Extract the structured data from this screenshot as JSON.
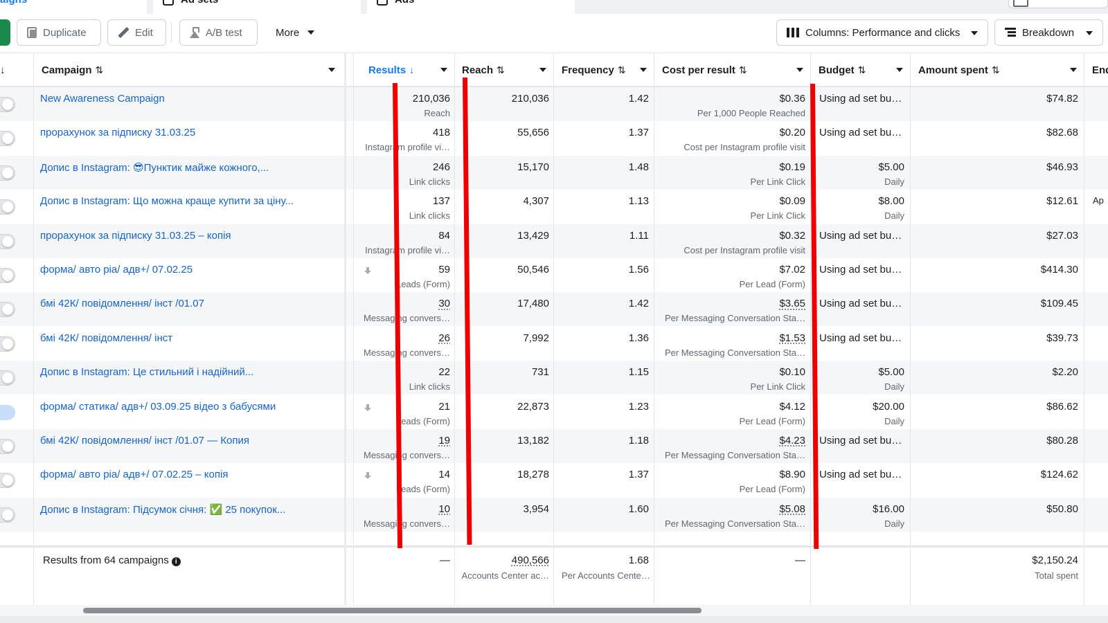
{
  "tabs": {
    "campaigns": "aigns",
    "adsets": "Ad sets",
    "ads": "Ads"
  },
  "toolbar": {
    "duplicate": "Duplicate",
    "edit": "Edit",
    "ab_test": "A/B test",
    "more": "More",
    "columns": "Columns: Performance and clicks",
    "breakdown": "Breakdown"
  },
  "columns": {
    "campaign": "Campaign",
    "results": "Results",
    "reach": "Reach",
    "frequency": "Frequency",
    "cost_per_result": "Cost per result",
    "budget": "Budget",
    "amount_spent": "Amount spent",
    "ends": "End"
  },
  "rows": [
    {
      "name": "New Awareness Campaign",
      "results": "210,036",
      "results_sub": "Reach",
      "reach": "210,036",
      "frequency": "1.42",
      "cost": "$0.36",
      "cost_sub": "Per 1,000 People Reached",
      "budget": "Using ad set bu…",
      "budget_sub": "",
      "spent": "$74.82",
      "ends": ""
    },
    {
      "name": "прорахунок за підписку 31.03.25",
      "results": "418",
      "results_sub": "Instagram profile vi…",
      "reach": "55,656",
      "frequency": "1.37",
      "cost": "$0.20",
      "cost_sub": "Cost per Instagram profile visit",
      "budget": "Using ad set bu…",
      "budget_sub": "",
      "spent": "$82.68",
      "ends": ""
    },
    {
      "name": "Допис в Instagram: 😎Пунктик майже кожного,...",
      "results": "246",
      "results_sub": "Link clicks",
      "reach": "15,170",
      "frequency": "1.48",
      "cost": "$0.19",
      "cost_sub": "Per Link Click",
      "budget": "$5.00",
      "budget_sub": "Daily",
      "spent": "$46.93",
      "ends": ""
    },
    {
      "name": "Допис в Instagram: Що можна краще купити за ціну...",
      "results": "137",
      "results_sub": "Link clicks",
      "reach": "4,307",
      "frequency": "1.13",
      "cost": "$0.09",
      "cost_sub": "Per Link Click",
      "budget": "$8.00",
      "budget_sub": "Daily",
      "spent": "$12.61",
      "ends": "Ap"
    },
    {
      "name": "прорахунок за підписку 31.03.25 – копія",
      "results": "84",
      "results_sub": "Instagram profile vi…",
      "reach": "13,429",
      "frequency": "1.11",
      "cost": "$0.32",
      "cost_sub": "Cost per Instagram profile visit",
      "budget": "Using ad set bu…",
      "budget_sub": "",
      "spent": "$27.03",
      "ends": ""
    },
    {
      "name": "форма/ авто ріа/ адв+/ 07.02.25",
      "results": "59",
      "results_sub": "Leads (Form)",
      "reach": "50,546",
      "frequency": "1.56",
      "cost": "$7.02",
      "cost_sub": "Per Lead (Form)",
      "budget": "Using ad set bu…",
      "budget_sub": "",
      "spent": "$414.30",
      "ends": ""
    },
    {
      "name": "бмі 42К/ повідомлення/ інст /01.07",
      "results": "30",
      "results_sub": "Messaging convers…",
      "reach": "17,480",
      "frequency": "1.42",
      "cost": "$3.65",
      "cost_sub": "Per Messaging Conversation Sta…",
      "budget": "Using ad set bu…",
      "budget_sub": "",
      "spent": "$109.45",
      "ends": ""
    },
    {
      "name": "бмі 42К/ повідомлення/ інст",
      "results": "26",
      "results_sub": "Messaging convers…",
      "reach": "7,992",
      "frequency": "1.36",
      "cost": "$1.53",
      "cost_sub": "Per Messaging Conversation Sta…",
      "budget": "Using ad set bu…",
      "budget_sub": "",
      "spent": "$39.73",
      "ends": ""
    },
    {
      "name": "Допис в Instagram: Це стильний і надійний...",
      "results": "22",
      "results_sub": "Link clicks",
      "reach": "731",
      "frequency": "1.15",
      "cost": "$0.10",
      "cost_sub": "Per Link Click",
      "budget": "$5.00",
      "budget_sub": "Daily",
      "spent": "$2.20",
      "ends": ""
    },
    {
      "name": "форма/ статика/ адв+/ 03.09.25 відео з бабусями",
      "results": "21",
      "results_sub": "Leads (Form)",
      "reach": "22,873",
      "frequency": "1.23",
      "cost": "$4.12",
      "cost_sub": "Per Lead (Form)",
      "budget": "$20.00",
      "budget_sub": "Daily",
      "spent": "$86.62",
      "ends": ""
    },
    {
      "name": "бмі 42К/ повідомлення/ інст /01.07 — Копия",
      "results": "19",
      "results_sub": "Messaging convers…",
      "reach": "13,182",
      "frequency": "1.18",
      "cost": "$4.23",
      "cost_sub": "Per Messaging Conversation Sta…",
      "budget": "Using ad set bu…",
      "budget_sub": "",
      "spent": "$80.28",
      "ends": ""
    },
    {
      "name": "форма/ авто ріа/ адв+/ 07.02.25 – копія",
      "results": "14",
      "results_sub": "Leads (Form)",
      "reach": "18,278",
      "frequency": "1.37",
      "cost": "$8.90",
      "cost_sub": "Per Lead (Form)",
      "budget": "Using ad set bu…",
      "budget_sub": "",
      "spent": "$124.62",
      "ends": ""
    },
    {
      "name": "Допис в Instagram: Підсумок січня: ✅ 25 покупок...",
      "results": "10",
      "results_sub": "Messaging convers…",
      "reach": "3,954",
      "frequency": "1.60",
      "cost": "$5.08",
      "cost_sub": "Per Messaging Conversation Sta…",
      "budget": "$16.00",
      "budget_sub": "Daily",
      "spent": "$50.80",
      "ends": ""
    }
  ],
  "footer": {
    "label": "Results from 64 campaigns",
    "results": "—",
    "reach": "490,566",
    "reach_sub": "Accounts Center ac…",
    "frequency": "1.68",
    "frequency_sub": "Per Accounts Cente…",
    "cost": "—",
    "spent": "$2,150.24",
    "spent_sub": "Total spent"
  },
  "colors": {
    "link": "#1664c7",
    "accent": "#1877f2",
    "annotation": "#ee0000",
    "publish_green": "#1a8a4b"
  }
}
